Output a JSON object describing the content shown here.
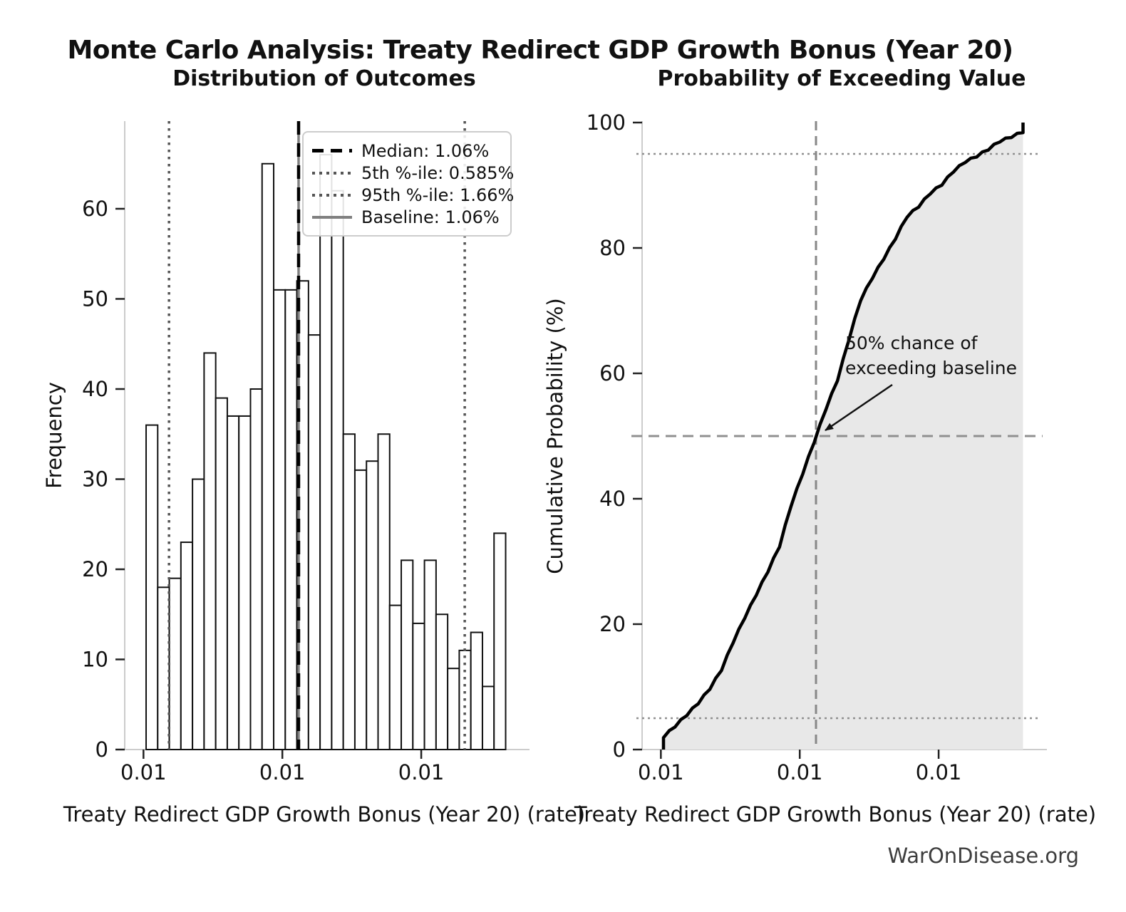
{
  "figure": {
    "suptitle": "Monte Carlo Analysis: Treaty Redirect GDP Growth Bonus (Year 20)",
    "watermark": "WarOnDisease.org"
  },
  "left_panel": {
    "title": "Distribution of Outcomes",
    "xlabel": "Treaty Redirect GDP Growth Bonus (Year 20) (rate)",
    "ylabel": "Frequency",
    "x_tick_labels": [
      "0.01",
      "0.01",
      "0.01"
    ],
    "y_tick_labels": [
      "0",
      "10",
      "20",
      "30",
      "40",
      "50",
      "60"
    ],
    "legend": [
      {
        "label": "Median: 1.06%",
        "style": "dashed-black"
      },
      {
        "label": "5th %-ile: 0.585%",
        "style": "dotted-gray"
      },
      {
        "label": "95th %-ile: 1.66%",
        "style": "dotted-gray"
      },
      {
        "label": "Baseline: 1.06%",
        "style": "solid-gray"
      }
    ]
  },
  "right_panel": {
    "title": "Probability of Exceeding Value",
    "xlabel": "Treaty Redirect GDP Growth Bonus (Year 20) (rate)",
    "ylabel": "Cumulative Probability (%)",
    "x_tick_labels": [
      "0.01",
      "0.01",
      "0.01"
    ],
    "y_tick_labels": [
      "0",
      "20",
      "40",
      "60",
      "80",
      "100"
    ],
    "annotation_lines": [
      "50% chance of",
      "exceeding baseline"
    ]
  },
  "chart_data": [
    {
      "type": "bar",
      "subtype": "histogram",
      "title": "Distribution of Outcomes",
      "xlabel": "Treaty Redirect GDP Growth Bonus (Year 20) (rate)",
      "ylabel": "Frequency",
      "n_bins": 31,
      "frequencies": [
        36,
        18,
        19,
        23,
        30,
        44,
        39,
        37,
        37,
        40,
        65,
        51,
        51,
        52,
        46,
        66,
        62,
        35,
        31,
        32,
        35,
        16,
        21,
        14,
        21,
        15,
        9,
        11,
        13,
        7,
        24
      ],
      "total_samples": 1000,
      "ylim": [
        0,
        69.7
      ],
      "y_ticks": [
        0,
        10,
        20,
        30,
        40,
        50,
        60
      ],
      "x_tick_labels": [
        "0.01",
        "0.01",
        "0.01"
      ],
      "grid": false,
      "legend_position": "upper right",
      "markers": {
        "median": {
          "label": "Median: 1.06%",
          "value": "1.06%",
          "frac": 0.4357,
          "style": "dashed-black"
        },
        "p5": {
          "label": "5th %-ile: 0.585%",
          "value": "0.585%",
          "frac": 0.111,
          "style": "dotted-gray"
        },
        "p95": {
          "label": "95th %-ile: 1.66%",
          "value": "1.66%",
          "frac": 0.852,
          "style": "dotted-gray"
        },
        "baseline": {
          "label": "Baseline: 1.06%",
          "value": "1.06%",
          "frac": 0.4357,
          "style": "solid-gray"
        }
      }
    },
    {
      "type": "line",
      "subtype": "empirical-cdf",
      "title": "Probability of Exceeding Value",
      "xlabel": "Treaty Redirect GDP Growth Bonus (Year 20) (rate)",
      "ylabel": "Cumulative Probability (%)",
      "ylim": [
        0,
        101
      ],
      "y_ticks": [
        0,
        20,
        40,
        60,
        80,
        100
      ],
      "x_tick_labels": [
        "0.01",
        "0.01",
        "0.01"
      ],
      "cumulative_pct": [
        3.6,
        5.4,
        7.3,
        9.6,
        12.6,
        17.0,
        20.9,
        24.6,
        28.3,
        32.3,
        38.8,
        43.9,
        49.0,
        54.2,
        58.8,
        65.4,
        71.6,
        75.1,
        78.2,
        81.4,
        84.9,
        86.5,
        88.6,
        90.0,
        92.1,
        93.6,
        94.5,
        95.6,
        96.9,
        97.6,
        100.0
      ],
      "h_guides_pct": [
        5,
        50,
        95
      ],
      "v_guide_frac": 0.4357,
      "annotation": "50% chance of exceeding baseline",
      "grid": false
    }
  ],
  "colors": {
    "median_line": "#000000",
    "percentile_line": "#555555",
    "baseline_line": "#808080",
    "guide_line": "#909090",
    "area_fill": "#e8e8e8",
    "curve": "#000000",
    "bar_fill": "#ffffff",
    "bar_edge": "#111111",
    "spine": "#cccccc",
    "tick": "#222222",
    "text": "#111111",
    "watermark": "#3d3d3d"
  }
}
